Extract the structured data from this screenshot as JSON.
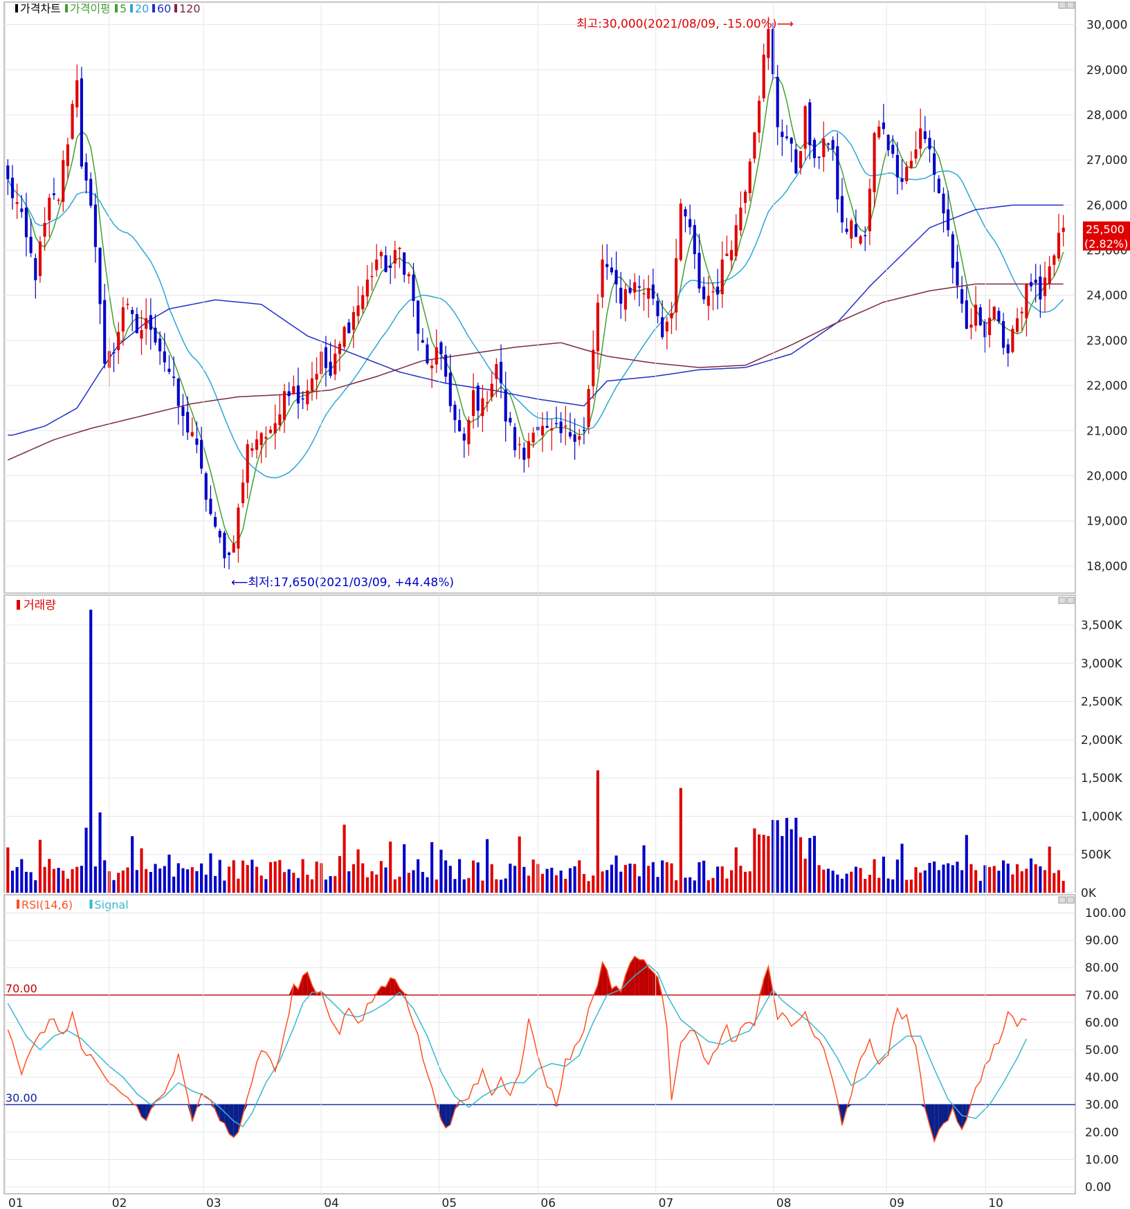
{
  "chart_data": [
    {
      "type": "candlestick",
      "panel": "price",
      "legend": [
        {
          "label": "가격차트",
          "color": "#000000"
        },
        {
          "label": "가격이평",
          "color": "#3fa02f"
        },
        {
          "label": "5",
          "color": "#3fa02f"
        },
        {
          "label": "20",
          "color": "#2aa6d8"
        },
        {
          "label": "60",
          "color": "#1f2fc6"
        },
        {
          "label": "120",
          "color": "#7a2840"
        }
      ],
      "ylim": [
        17400,
        30500
      ],
      "yticks": [
        "30,000",
        "29,000",
        "28,000",
        "27,000",
        "26,000",
        "25,000",
        "24,000",
        "23,000",
        "22,000",
        "21,000",
        "20,000",
        "19,000",
        "18,000"
      ],
      "ytick_values": [
        30000,
        29000,
        28000,
        27000,
        26000,
        25000,
        24000,
        23000,
        22000,
        21000,
        20000,
        19000,
        18000
      ],
      "last_price": "25,500",
      "last_change": "(2.82%)",
      "high_annotation": "최고:30,000(2021/08/09, -15.00%)⟶",
      "low_annotation": "⟵최저:17,650(2021/03/09, +44.48%)",
      "up_color": "#e00000",
      "down_color": "#0000c8",
      "ma_series": [
        {
          "name": "5",
          "color": "#3fa02f"
        },
        {
          "name": "20",
          "color": "#2aa6d8"
        },
        {
          "name": "60",
          "color": "#1f2fc6"
        },
        {
          "name": "120",
          "color": "#7a2840"
        }
      ],
      "ma60_points": [
        [
          1,
          20900
        ],
        [
          8,
          21100
        ],
        [
          15,
          21500
        ],
        [
          20,
          22300
        ],
        [
          24,
          22900
        ],
        [
          30,
          23400
        ],
        [
          35,
          23700
        ],
        [
          45,
          23900
        ],
        [
          55,
          23800
        ],
        [
          65,
          23100
        ],
        [
          75,
          22700
        ],
        [
          85,
          22300
        ],
        [
          95,
          22050
        ],
        [
          105,
          21900
        ],
        [
          115,
          21700
        ],
        [
          125,
          21550
        ],
        [
          130,
          22100
        ],
        [
          140,
          22200
        ],
        [
          150,
          22350
        ],
        [
          160,
          22400
        ],
        [
          170,
          22700
        ],
        [
          180,
          23400
        ],
        [
          187,
          24200
        ],
        [
          192,
          24700
        ],
        [
          200,
          25500
        ],
        [
          210,
          25900
        ],
        [
          218,
          26000
        ],
        [
          230,
          26000
        ]
      ]
    },
    {
      "type": "bar",
      "panel": "volume",
      "title": "거래량",
      "color": "#e00000",
      "ylim": [
        0,
        3800
      ],
      "yticks": [
        "3,500K",
        "3,000K",
        "2,500K",
        "2,000K",
        "1,500K",
        "1,000K",
        "500K",
        "0K"
      ],
      "ytick_values": [
        3500,
        3000,
        2500,
        2000,
        1500,
        1000,
        500,
        0
      ]
    },
    {
      "type": "line",
      "panel": "rsi",
      "legend": [
        {
          "label": "RSI(14,6)",
          "color": "#ff5020"
        },
        {
          "label": "Signal",
          "color": "#38b8d0"
        }
      ],
      "ylim": [
        0,
        100
      ],
      "yticks": [
        "100.00",
        "90.00",
        "80.00",
        "70.00",
        "60.00",
        "50.00",
        "40.00",
        "30.00",
        "20.00",
        "10.00",
        "0.00"
      ],
      "ytick_values": [
        100,
        90,
        80,
        70,
        60,
        50,
        40,
        30,
        20,
        10,
        0
      ],
      "upper_line": {
        "value": 70,
        "label": "70.00",
        "color": "#c00000"
      },
      "lower_line": {
        "value": 30,
        "label": "30.00",
        "color": "#1020a0"
      }
    }
  ],
  "x_axis": {
    "labels": [
      {
        "label": "01",
        "index": 0
      },
      {
        "label": "02",
        "index": 22
      },
      {
        "label": "03",
        "index": 42
      },
      {
        "label": "04",
        "index": 67
      },
      {
        "label": "05",
        "index": 92
      },
      {
        "label": "06",
        "index": 113
      },
      {
        "label": "07",
        "index": 138
      },
      {
        "label": "08",
        "index": 163
      },
      {
        "label": "09",
        "index": 187
      },
      {
        "label": "10",
        "index": 208
      }
    ],
    "total_bars": 225
  },
  "price_anchors": [
    [
      0,
      26500
    ],
    [
      2,
      26000
    ],
    [
      4,
      25200
    ],
    [
      6,
      24500
    ],
    [
      9,
      26000
    ],
    [
      11,
      26200
    ],
    [
      13,
      27500
    ],
    [
      15,
      28900
    ],
    [
      16,
      27000
    ],
    [
      18,
      25800
    ],
    [
      20,
      24000
    ],
    [
      21,
      22500
    ],
    [
      23,
      22800
    ],
    [
      25,
      23800
    ],
    [
      28,
      23200
    ],
    [
      31,
      23400
    ],
    [
      35,
      22300
    ],
    [
      38,
      21200
    ],
    [
      40,
      21000
    ],
    [
      42,
      20000
    ],
    [
      45,
      18700
    ],
    [
      48,
      18200
    ],
    [
      50,
      19200
    ],
    [
      52,
      20600
    ],
    [
      55,
      21000
    ],
    [
      57,
      20800
    ],
    [
      60,
      22000
    ],
    [
      64,
      21800
    ],
    [
      68,
      22600
    ],
    [
      70,
      22200
    ],
    [
      73,
      23200
    ],
    [
      77,
      24000
    ],
    [
      80,
      24800
    ],
    [
      83,
      24600
    ],
    [
      85,
      25000
    ],
    [
      87,
      24400
    ],
    [
      89,
      23200
    ],
    [
      91,
      22400
    ],
    [
      93,
      22700
    ],
    [
      95,
      22200
    ],
    [
      97,
      21200
    ],
    [
      99,
      20600
    ],
    [
      101,
      21800
    ],
    [
      103,
      21500
    ],
    [
      106,
      22500
    ],
    [
      108,
      21300
    ],
    [
      110,
      20700
    ],
    [
      112,
      20400
    ],
    [
      114,
      21200
    ],
    [
      117,
      20900
    ],
    [
      120,
      20900
    ],
    [
      123,
      21000
    ],
    [
      125,
      21000
    ],
    [
      127,
      22700
    ],
    [
      129,
      24800
    ],
    [
      131,
      24300
    ],
    [
      133,
      24000
    ],
    [
      135,
      24200
    ],
    [
      137,
      24200
    ],
    [
      140,
      24000
    ],
    [
      142,
      23200
    ],
    [
      144,
      23800
    ],
    [
      146,
      25800
    ],
    [
      148,
      25500
    ],
    [
      150,
      24000
    ],
    [
      152,
      24000
    ],
    [
      154,
      24200
    ],
    [
      156,
      25000
    ],
    [
      158,
      25500
    ],
    [
      160,
      26500
    ],
    [
      162,
      27800
    ],
    [
      164,
      29200
    ],
    [
      165,
      29800
    ],
    [
      167,
      27800
    ],
    [
      169,
      27500
    ],
    [
      171,
      26800
    ],
    [
      173,
      28000
    ],
    [
      175,
      26800
    ],
    [
      177,
      27600
    ],
    [
      179,
      27000
    ],
    [
      181,
      25500
    ],
    [
      183,
      25500
    ],
    [
      186,
      25200
    ],
    [
      188,
      27500
    ],
    [
      190,
      27800
    ],
    [
      192,
      27000
    ],
    [
      194,
      26700
    ],
    [
      196,
      27000
    ],
    [
      198,
      27600
    ],
    [
      200,
      27200
    ],
    [
      202,
      26300
    ],
    [
      204,
      25400
    ],
    [
      206,
      24000
    ],
    [
      208,
      23200
    ],
    [
      210,
      23600
    ],
    [
      212,
      23300
    ],
    [
      214,
      23800
    ],
    [
      216,
      22600
    ],
    [
      218,
      23300
    ],
    [
      220,
      23800
    ],
    [
      222,
      24300
    ],
    [
      224,
      23800
    ],
    [
      226,
      24500
    ],
    [
      228,
      25300
    ],
    [
      229,
      25500
    ]
  ],
  "rsi_anchors": [
    [
      0,
      59
    ],
    [
      3,
      42
    ],
    [
      6,
      52
    ],
    [
      9,
      61
    ],
    [
      12,
      56
    ],
    [
      14,
      63
    ],
    [
      16,
      50
    ],
    [
      18,
      47
    ],
    [
      20,
      41
    ],
    [
      22,
      37
    ],
    [
      25,
      34
    ],
    [
      28,
      29
    ],
    [
      30,
      24
    ],
    [
      32,
      31
    ],
    [
      35,
      37
    ],
    [
      37,
      47
    ],
    [
      39,
      32
    ],
    [
      40,
      23
    ],
    [
      42,
      36
    ],
    [
      44,
      33
    ],
    [
      46,
      25
    ],
    [
      48,
      20
    ],
    [
      50,
      19
    ],
    [
      52,
      33
    ],
    [
      54,
      46
    ],
    [
      56,
      50
    ],
    [
      58,
      42
    ],
    [
      60,
      55
    ],
    [
      62,
      72
    ],
    [
      64,
      76
    ],
    [
      65,
      79
    ],
    [
      66,
      73
    ],
    [
      68,
      71
    ],
    [
      70,
      62
    ],
    [
      72,
      57
    ],
    [
      74,
      66
    ],
    [
      76,
      58
    ],
    [
      78,
      65
    ],
    [
      80,
      71
    ],
    [
      82,
      74
    ],
    [
      84,
      76
    ],
    [
      86,
      72
    ],
    [
      88,
      60
    ],
    [
      90,
      48
    ],
    [
      92,
      35
    ],
    [
      94,
      26
    ],
    [
      96,
      21
    ],
    [
      97,
      29
    ],
    [
      99,
      30
    ],
    [
      101,
      36
    ],
    [
      103,
      42
    ],
    [
      105,
      34
    ],
    [
      107,
      39
    ],
    [
      109,
      35
    ],
    [
      111,
      43
    ],
    [
      113,
      60
    ],
    [
      115,
      48
    ],
    [
      117,
      38
    ],
    [
      119,
      30
    ],
    [
      121,
      46
    ],
    [
      123,
      50
    ],
    [
      125,
      58
    ],
    [
      127,
      70
    ],
    [
      129,
      81
    ],
    [
      131,
      74
    ],
    [
      133,
      72
    ],
    [
      135,
      82
    ],
    [
      137,
      83
    ],
    [
      139,
      82
    ],
    [
      141,
      75
    ],
    [
      143,
      60
    ],
    [
      144,
      33
    ],
    [
      146,
      54
    ],
    [
      148,
      58
    ],
    [
      150,
      52
    ],
    [
      152,
      46
    ],
    [
      154,
      50
    ],
    [
      156,
      58
    ],
    [
      158,
      52
    ],
    [
      160,
      60
    ],
    [
      162,
      58
    ],
    [
      164,
      75
    ],
    [
      165,
      82
    ],
    [
      167,
      62
    ],
    [
      169,
      62
    ],
    [
      171,
      58
    ],
    [
      173,
      64
    ],
    [
      175,
      55
    ],
    [
      177,
      50
    ],
    [
      179,
      38
    ],
    [
      181,
      24
    ],
    [
      183,
      35
    ],
    [
      185,
      45
    ],
    [
      187,
      52
    ],
    [
      189,
      45
    ],
    [
      191,
      50
    ],
    [
      193,
      64
    ],
    [
      195,
      62
    ],
    [
      197,
      51
    ],
    [
      199,
      27
    ],
    [
      201,
      18
    ],
    [
      203,
      24
    ],
    [
      205,
      28
    ],
    [
      207,
      22
    ],
    [
      209,
      30
    ],
    [
      211,
      40
    ],
    [
      213,
      48
    ],
    [
      215,
      53
    ],
    [
      217,
      62
    ],
    [
      219,
      60
    ],
    [
      221,
      61
    ]
  ],
  "signal_anchors": [
    [
      0,
      67
    ],
    [
      4,
      55
    ],
    [
      7,
      50
    ],
    [
      10,
      55
    ],
    [
      13,
      57
    ],
    [
      16,
      54
    ],
    [
      19,
      49
    ],
    [
      22,
      44
    ],
    [
      25,
      40
    ],
    [
      28,
      34
    ],
    [
      31,
      30
    ],
    [
      34,
      33
    ],
    [
      37,
      38
    ],
    [
      40,
      35
    ],
    [
      43,
      33
    ],
    [
      46,
      29
    ],
    [
      49,
      24
    ],
    [
      51,
      22
    ],
    [
      53,
      27
    ],
    [
      56,
      38
    ],
    [
      59,
      46
    ],
    [
      62,
      58
    ],
    [
      64,
      67
    ],
    [
      66,
      71
    ],
    [
      68,
      71
    ],
    [
      70,
      68
    ],
    [
      73,
      63
    ],
    [
      76,
      62
    ],
    [
      79,
      64
    ],
    [
      82,
      67
    ],
    [
      85,
      71
    ],
    [
      88,
      65
    ],
    [
      91,
      55
    ],
    [
      94,
      42
    ],
    [
      97,
      33
    ],
    [
      100,
      29
    ],
    [
      103,
      33
    ],
    [
      106,
      36
    ],
    [
      109,
      38
    ],
    [
      112,
      38
    ],
    [
      115,
      43
    ],
    [
      118,
      45
    ],
    [
      121,
      44
    ],
    [
      124,
      48
    ],
    [
      127,
      60
    ],
    [
      130,
      70
    ],
    [
      133,
      72
    ],
    [
      136,
      77
    ],
    [
      139,
      81
    ],
    [
      141,
      78
    ],
    [
      143,
      70
    ],
    [
      146,
      61
    ],
    [
      149,
      57
    ],
    [
      152,
      53
    ],
    [
      155,
      52
    ],
    [
      158,
      55
    ],
    [
      161,
      57
    ],
    [
      164,
      66
    ],
    [
      166,
      72
    ],
    [
      168,
      68
    ],
    [
      171,
      64
    ],
    [
      174,
      60
    ],
    [
      177,
      55
    ],
    [
      180,
      47
    ],
    [
      183,
      37
    ],
    [
      186,
      40
    ],
    [
      189,
      46
    ],
    [
      192,
      51
    ],
    [
      195,
      55
    ],
    [
      198,
      55
    ],
    [
      201,
      43
    ],
    [
      204,
      32
    ],
    [
      207,
      26
    ],
    [
      210,
      25
    ],
    [
      213,
      30
    ],
    [
      216,
      38
    ],
    [
      219,
      47
    ],
    [
      221,
      54
    ]
  ]
}
